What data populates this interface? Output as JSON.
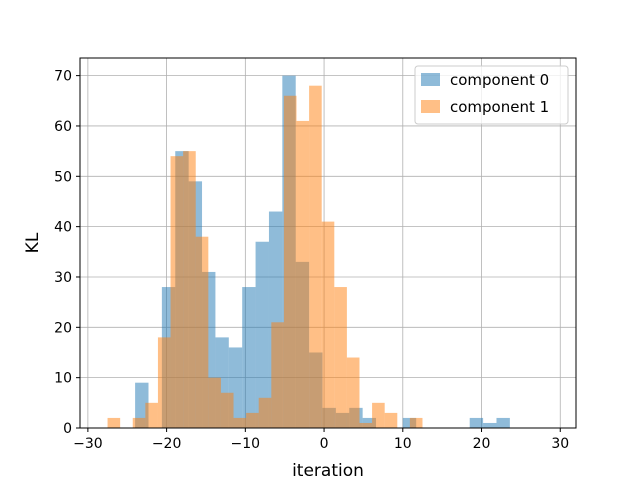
{
  "chart_data": {
    "type": "bar",
    "title": "",
    "xlabel": "iteration",
    "ylabel": "KL",
    "xlim": [
      -31,
      32
    ],
    "ylim": [
      0,
      73.5
    ],
    "grid": true,
    "legend_position": "top-right",
    "x_ticks": [
      -30,
      -20,
      -10,
      0,
      10,
      20,
      30
    ],
    "x_tick_labels": [
      "−30",
      "−20",
      "−10",
      "0",
      "10",
      "20",
      "30"
    ],
    "y_ticks": [
      0,
      10,
      20,
      30,
      40,
      50,
      60,
      70
    ],
    "y_tick_labels": [
      "0",
      "10",
      "20",
      "30",
      "40",
      "50",
      "60",
      "70"
    ],
    "series": [
      {
        "name": "component 0",
        "color": "#1f77b4",
        "bin_width": 1.7,
        "bin_start": -24.0,
        "values": [
          9,
          0,
          28,
          55,
          49,
          31,
          18,
          16,
          28,
          37,
          43,
          70,
          33,
          15,
          4,
          3,
          4,
          2,
          0,
          0,
          2,
          0,
          0,
          0,
          0,
          2,
          1,
          2
        ]
      },
      {
        "name": "component 1",
        "color": "#ff7f0e",
        "bin_width": 1.6,
        "bin_start": -27.5,
        "values": [
          2,
          0,
          2,
          5,
          18,
          54,
          55,
          38,
          10,
          7,
          2,
          3,
          6,
          21,
          66,
          61,
          68,
          41,
          28,
          14,
          1,
          5,
          3,
          0,
          2
        ]
      }
    ]
  }
}
